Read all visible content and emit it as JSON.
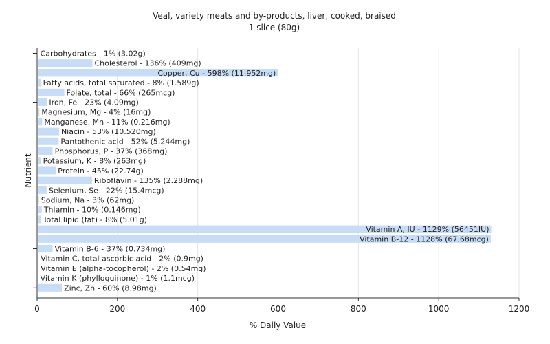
{
  "chart_data": {
    "type": "bar",
    "orientation": "horizontal",
    "title": "Veal, variety meats and by-products, liver, cooked, braised",
    "subtitle": "1 slice (80g)",
    "xlabel": "% Daily Value",
    "ylabel": "Nutrient",
    "xlim": [
      0,
      1200
    ],
    "xticks": [
      0,
      200,
      400,
      600,
      800,
      1000,
      1200
    ],
    "grid": true,
    "colors": {
      "bar": "#c6dcf7",
      "axis": "#333333",
      "grid": "#e6e6e6"
    },
    "categories": [
      "Carbohydrates",
      "Cholesterol",
      "Copper, Cu",
      "Fatty acids, total saturated",
      "Folate, total",
      "Iron, Fe",
      "Magnesium, Mg",
      "Manganese, Mn",
      "Niacin",
      "Pantothenic acid",
      "Phosphorus, P",
      "Potassium, K",
      "Protein",
      "Riboflavin",
      "Selenium, Se",
      "Sodium, Na",
      "Thiamin",
      "Total lipid (fat)",
      "Vitamin A, IU",
      "Vitamin B-12",
      "Vitamin B-6",
      "Vitamin C, total ascorbic acid",
      "Vitamin E (alpha-tocopherol)",
      "Vitamin K (phylloquinone)",
      "Zinc, Zn"
    ],
    "values": [
      1,
      136,
      598,
      8,
      66,
      23,
      4,
      11,
      53,
      52,
      37,
      8,
      45,
      135,
      22,
      3,
      10,
      8,
      1129,
      1128,
      37,
      2,
      2,
      1,
      60
    ],
    "labels": [
      "Carbohydrates - 1% (3.02g)",
      "Cholesterol - 136% (409mg)",
      "Copper, Cu - 598% (11.952mg)",
      "Fatty acids, total saturated - 8% (1.589g)",
      "Folate, total - 66% (265mcg)",
      "Iron, Fe - 23% (4.09mg)",
      "Magnesium, Mg - 4% (16mg)",
      "Manganese, Mn - 11% (0.216mg)",
      "Niacin - 53% (10.520mg)",
      "Pantothenic acid - 52% (5.244mg)",
      "Phosphorus, P - 37% (368mg)",
      "Potassium, K - 8% (263mg)",
      "Protein - 45% (22.74g)",
      "Riboflavin - 135% (2.288mg)",
      "Selenium, Se - 22% (15.4mcg)",
      "Sodium, Na - 3% (62mg)",
      "Thiamin - 10% (0.146mg)",
      "Total lipid (fat) - 8% (5.01g)",
      "Vitamin A, IU - 1129% (56451IU)",
      "Vitamin B-12 - 1128% (67.68mcg)",
      "Vitamin B-6 - 37% (0.734mg)",
      "Vitamin C, total ascorbic acid - 2% (0.9mg)",
      "Vitamin E (alpha-tocopherol) - 2% (0.54mg)",
      "Vitamin K (phylloquinone) - 1% (1.1mcg)",
      "Zinc, Zn - 60% (8.98mg)"
    ]
  }
}
